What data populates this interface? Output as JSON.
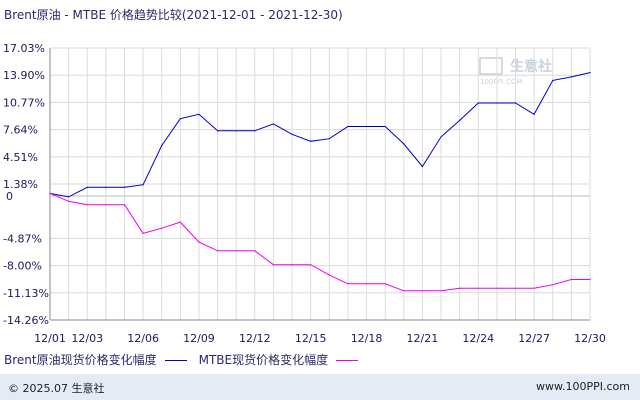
{
  "header": {
    "title": "Brent原油 - MTBE 价格趋势比较(2021-12-01 - 2021-12-30)"
  },
  "watermark": {
    "text": "生意社",
    "sub": "100PPI.COM"
  },
  "footer": {
    "copyright": "© 2025.07 生意社",
    "site": "www.100PPI.com"
  },
  "legend": [
    {
      "label": "Brent原油现货价格变化幅度",
      "color": "#0000cc"
    },
    {
      "label": "MTBE现货价格变化幅度",
      "color": "#ee00ee"
    }
  ],
  "chart_data": {
    "type": "line",
    "title": "Brent原油 - MTBE 价格趋势比较(2021-12-01 - 2021-12-30)",
    "xlabel": "",
    "ylabel": "",
    "x_tick_labels": [
      "12/01",
      "12/03",
      "12/06",
      "12/09",
      "12/12",
      "12/15",
      "12/18",
      "12/21",
      "12/24",
      "12/27",
      "12/30"
    ],
    "y_tick_labels": [
      "17.03%",
      "13.90%",
      "10.77%",
      "7.64%",
      "4.51%",
      "1.38%",
      "0",
      "-4.87%",
      "-8.00%",
      "-11.13%",
      "-14.26%"
    ],
    "ylim": [
      -14.26,
      17.03
    ],
    "grid": true,
    "legend_position": "bottom",
    "x": [
      "12/01",
      "12/02",
      "12/03",
      "12/04",
      "12/05",
      "12/06",
      "12/07",
      "12/08",
      "12/09",
      "12/10",
      "12/11",
      "12/12",
      "12/13",
      "12/14",
      "12/15",
      "12/16",
      "12/17",
      "12/18",
      "12/19",
      "12/20",
      "12/21",
      "12/22",
      "12/23",
      "12/24",
      "12/25",
      "12/26",
      "12/27",
      "12/28",
      "12/29",
      "12/30"
    ],
    "series": [
      {
        "name": "Brent原油现货价格变化幅度",
        "color": "#0000cc",
        "values": [
          0.3,
          -0.1,
          1.0,
          1.0,
          1.0,
          1.3,
          5.8,
          8.9,
          9.4,
          7.5,
          7.5,
          7.5,
          8.3,
          7.1,
          6.3,
          6.6,
          8.0,
          8.0,
          8.0,
          6.0,
          3.4,
          6.8,
          8.7,
          10.7,
          10.7,
          10.7,
          9.4,
          13.3,
          13.7,
          14.2
        ]
      },
      {
        "name": "MTBE现货价格变化幅度",
        "color": "#ee00ee",
        "values": [
          0.3,
          -0.6,
          -1.0,
          -1.0,
          -1.0,
          -4.3,
          -3.7,
          -3.0,
          -5.3,
          -6.3,
          -6.3,
          -6.3,
          -7.9,
          -7.9,
          -7.9,
          -9.1,
          -10.1,
          -10.1,
          -10.1,
          -10.9,
          -10.9,
          -10.9,
          -10.6,
          -10.6,
          -10.6,
          -10.6,
          -10.6,
          -10.2,
          -9.6,
          -9.6
        ]
      }
    ]
  }
}
